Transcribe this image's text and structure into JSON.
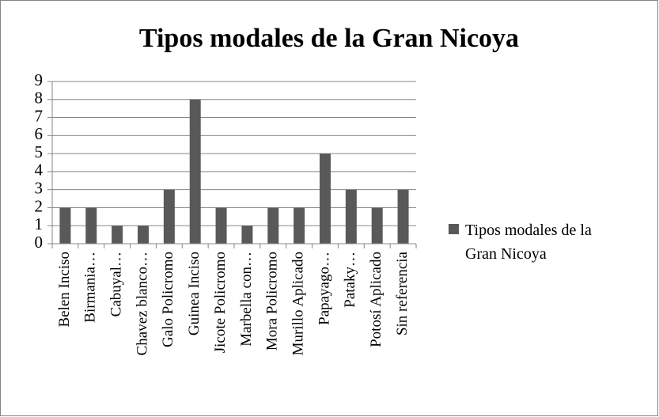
{
  "chart_data": {
    "type": "bar",
    "title": "Tipos modales de la Gran Nicoya",
    "categories": [
      "Belen Inciso",
      "Birmania…",
      "Cabuyal…",
      "Chavez blanco…",
      "Galo Policromo",
      "Guinea Inciso",
      "Jicote Policromo",
      "Marbella con…",
      "Mora Policromo",
      "Murillo Aplicado",
      "Papayago…",
      "Pataky…",
      "Potosí Aplicado",
      "Sin referencia"
    ],
    "series": [
      {
        "name": "Tipos modales de la Gran Nicoya",
        "color": "#595959",
        "values": [
          2,
          2,
          1,
          1,
          3,
          8,
          2,
          1,
          2,
          2,
          5,
          3,
          2,
          3
        ]
      }
    ],
    "ylim": [
      0,
      9
    ],
    "yticks": [
      0,
      1,
      2,
      3,
      4,
      5,
      6,
      7,
      8,
      9
    ],
    "grid": true,
    "legend": "right"
  }
}
